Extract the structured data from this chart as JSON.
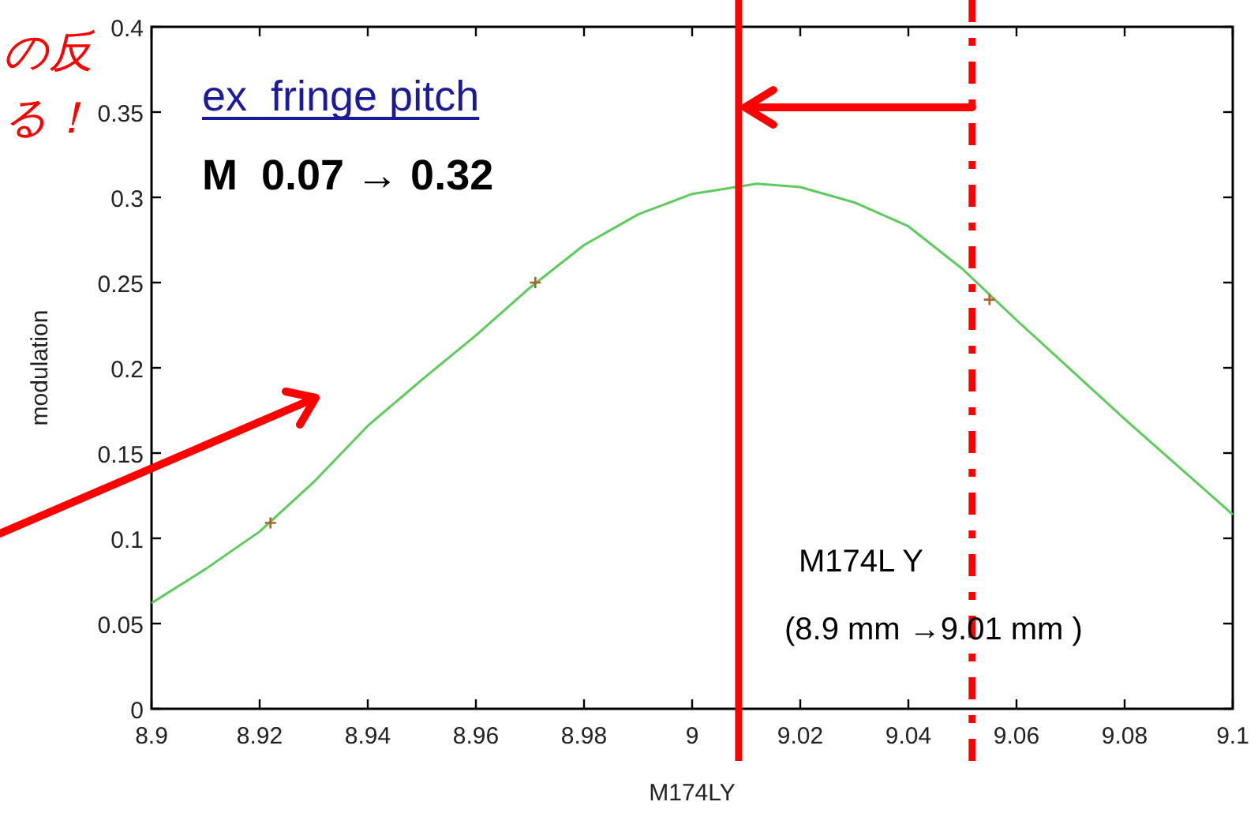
{
  "chart_data": {
    "type": "line",
    "xlabel": "M174LY",
    "ylabel": "modulation",
    "xlim": [
      8.9,
      9.1
    ],
    "ylim": [
      0,
      0.4
    ],
    "xticks": [
      8.9,
      8.92,
      8.94,
      8.96,
      8.98,
      9,
      9.02,
      9.04,
      9.06,
      9.08,
      9.1
    ],
    "yticks": [
      0,
      0.05,
      0.1,
      0.15,
      0.2,
      0.25,
      0.3,
      0.35,
      0.4
    ],
    "grid": false,
    "series": [
      {
        "color": "#5ccc5c",
        "x": [
          8.9,
          8.91,
          8.92,
          8.93,
          8.94,
          8.95,
          8.96,
          8.97,
          8.98,
          8.99,
          9.0,
          9.012,
          9.02,
          9.03,
          9.04,
          9.05,
          9.06,
          9.07,
          9.08,
          9.09,
          9.1
        ],
        "values": [
          0.062,
          0.082,
          0.104,
          0.133,
          0.166,
          0.193,
          0.219,
          0.247,
          0.272,
          0.29,
          0.302,
          0.308,
          0.306,
          0.297,
          0.283,
          0.258,
          0.228,
          0.199,
          0.17,
          0.142,
          0.114
        ]
      },
      {
        "type": "scatter",
        "color": "#b0602a",
        "marker": "cross",
        "x": [
          8.922,
          8.971,
          9.055
        ],
        "values": [
          0.109,
          0.25,
          0.24
        ]
      }
    ],
    "ref_lines": [
      {
        "axis": "x",
        "value": 9.0086,
        "color": "#ff0000",
        "line_style": "solid"
      },
      {
        "axis": "x",
        "value": 9.0518,
        "color": "#ff0000",
        "line_style": "dashed"
      }
    ],
    "annotations": [
      "の反",
      "る！",
      "ex  fringe pitch",
      "M  0.07 → 0.32",
      "M174L Y",
      "(8.9 mm →9.01 mm )"
    ]
  }
}
